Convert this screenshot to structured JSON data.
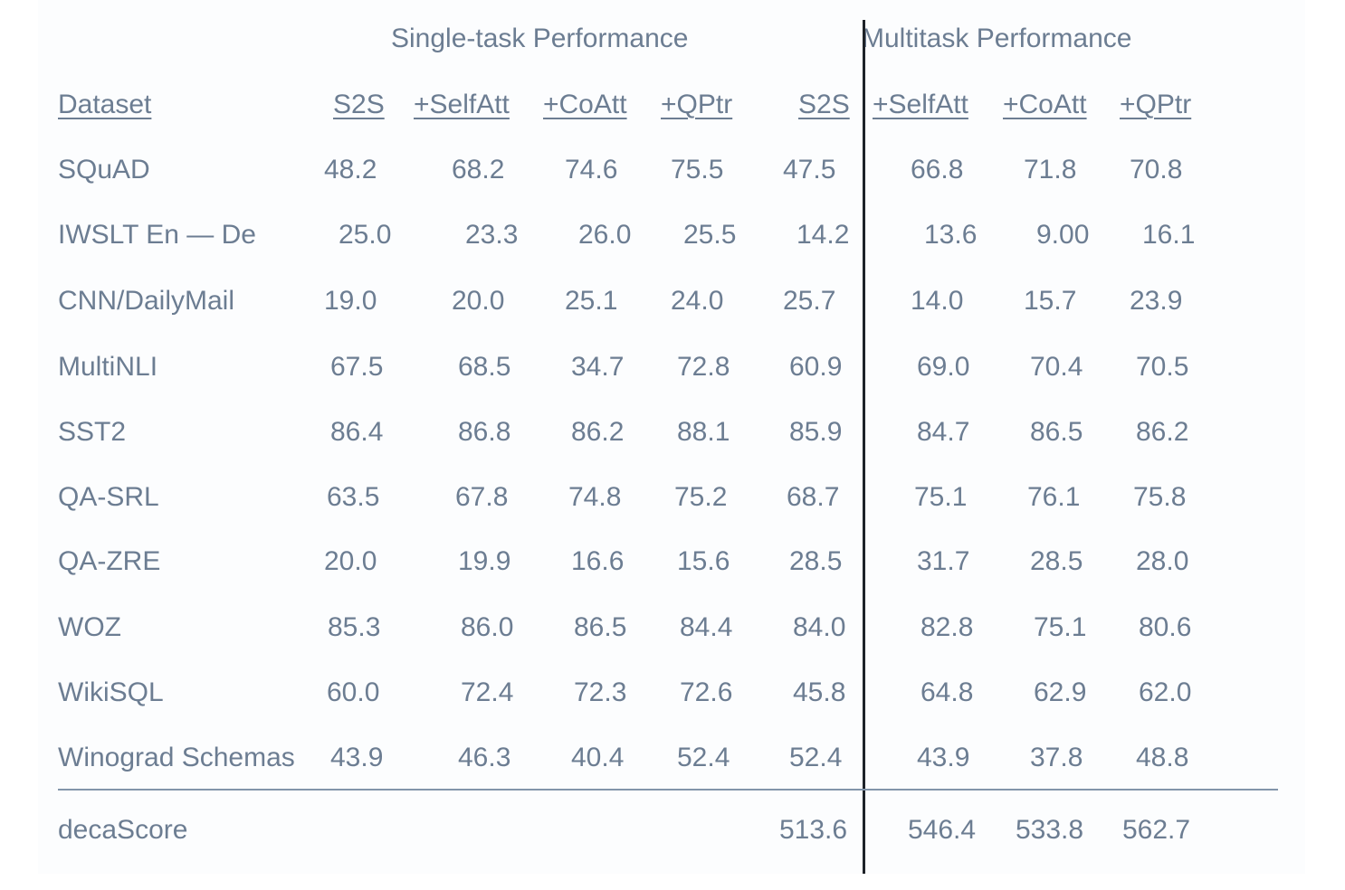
{
  "table": {
    "group_headers": {
      "single": "Single-task Performance",
      "multi": "Multitask Performance"
    },
    "columns": [
      "Dataset",
      "S2S",
      "+SelfAtt",
      "+CoAtt",
      "+QPtr",
      "S2S",
      "+SelfAtt",
      "+CoAtt",
      "+QPtr"
    ],
    "rows": [
      {
        "dataset": "SQuAD",
        "values": [
          "48.2",
          "68.2",
          "74.6",
          "75.5",
          "47.5",
          "66.8",
          "71.8",
          "70.8"
        ]
      },
      {
        "dataset": "IWSLT En — De",
        "values": [
          "25.0",
          "23.3",
          "26.0",
          "25.5",
          "14.2",
          "13.6",
          "9.00",
          "16.1"
        ]
      },
      {
        "dataset": "CNN/DailyMail",
        "values": [
          "19.0",
          "20.0",
          "25.1",
          "24.0",
          "25.7",
          "14.0",
          "15.7",
          "23.9"
        ]
      },
      {
        "dataset": "MultiNLI",
        "values": [
          "67.5",
          "68.5",
          "34.7",
          "72.8",
          "60.9",
          "69.0",
          "70.4",
          "70.5"
        ]
      },
      {
        "dataset": "SST2",
        "values": [
          "86.4",
          "86.8",
          "86.2",
          "88.1",
          "85.9",
          "84.7",
          "86.5",
          "86.2"
        ]
      },
      {
        "dataset": "QA-SRL",
        "values": [
          "63.5",
          "67.8",
          "74.8",
          "75.2",
          "68.7",
          "75.1",
          "76.1",
          "75.8"
        ]
      },
      {
        "dataset": "QA-ZRE",
        "values": [
          "20.0",
          "19.9",
          "16.6",
          "15.6",
          "28.5",
          "31.7",
          "28.5",
          "28.0"
        ]
      },
      {
        "dataset": "WOZ",
        "values": [
          "85.3",
          "86.0",
          "86.5",
          "84.4",
          "84.0",
          "82.8",
          "75.1",
          "80.6"
        ]
      },
      {
        "dataset": "WikiSQL",
        "values": [
          "60.0",
          "72.4",
          "72.3",
          "72.6",
          "45.8",
          "64.8",
          "62.9",
          "62.0"
        ]
      },
      {
        "dataset": "Winograd Schemas",
        "values": [
          "43.9",
          "46.3",
          "40.4",
          "52.4",
          "52.4",
          "43.9",
          "37.8",
          "48.8"
        ]
      }
    ],
    "summary": {
      "label": "decaScore",
      "values": [
        "",
        "",
        "",
        "",
        "513.6",
        "546.4",
        "533.8",
        "562.7"
      ]
    }
  },
  "colors": {
    "text": "#6c7d92",
    "divider_vertical": "#1e2228",
    "divider_horizontal": "#8295aa"
  }
}
